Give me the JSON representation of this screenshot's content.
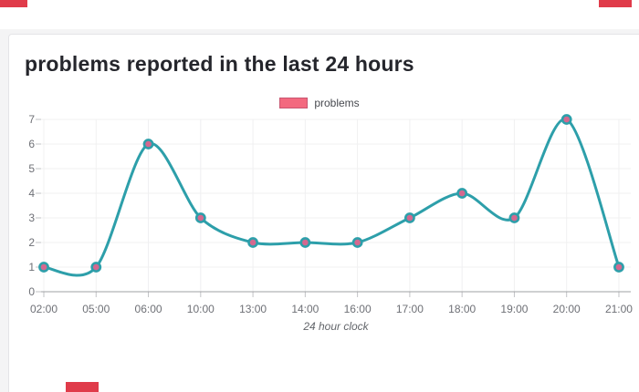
{
  "header": {
    "title": "problems reported in the last 24 hours"
  },
  "legend": {
    "label": "problems",
    "swatch_fill": "#f3697f",
    "swatch_border": "#c85570"
  },
  "chart_data": {
    "type": "line",
    "categories": [
      "02:00",
      "05:00",
      "06:00",
      "10:00",
      "13:00",
      "14:00",
      "16:00",
      "17:00",
      "18:00",
      "19:00",
      "20:00",
      "21:00"
    ],
    "series": [
      {
        "name": "problems",
        "values": [
          1,
          1,
          6,
          3,
          2,
          2,
          2,
          3,
          4,
          3,
          7,
          1
        ]
      }
    ],
    "title": "problems reported in the last 24 hours",
    "xlabel": "24 hour clock",
    "ylabel": "",
    "ylim": [
      0,
      7
    ],
    "yticks": [
      0,
      1,
      2,
      3,
      4,
      5,
      6,
      7
    ],
    "grid": true,
    "smooth": true,
    "legend_position": "top",
    "line_color": "#2d9faa",
    "point_fill": "#d4688f",
    "grid_color": "#f0f0f1",
    "axis_line_color": "#9fa0a3",
    "tick_mark_color": "#c2c3c6",
    "tick_label_color": "#6e7076"
  },
  "markers": {
    "color": "#e03b4a"
  },
  "page": {
    "background": "#f4f4f5",
    "card_border": "#e4e4e7"
  }
}
